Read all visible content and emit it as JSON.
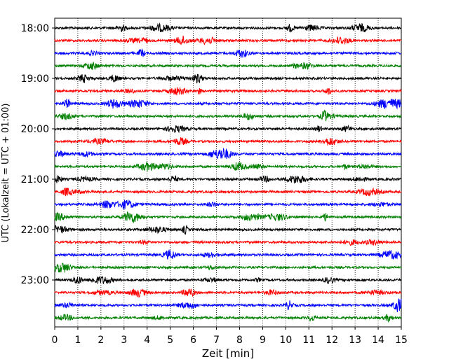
{
  "chart_data": {
    "type": "line",
    "title": "",
    "xlabel": "Zeit  [min]",
    "ylabel": "UTC (Lokalzeit = UTC + 01:00)",
    "xlim": [
      0,
      15
    ],
    "x_ticks": [
      "0",
      "1",
      "2",
      "3",
      "4",
      "5",
      "6",
      "7",
      "8",
      "9",
      "10",
      "11",
      "12",
      "13",
      "14",
      "15"
    ],
    "y_ticks": [
      "18:00",
      "19:00",
      "20:00",
      "21:00",
      "22:00",
      "23:00"
    ],
    "grid": "x-dotted",
    "trace_interval_minutes": 15,
    "start_time": "18:00",
    "trace_count": 24,
    "trace_colors": [
      "#000000",
      "#ff0000",
      "#0000ff",
      "#008000"
    ],
    "traces": [
      {
        "start": "18:00"
      },
      {
        "start": "18:15"
      },
      {
        "start": "18:30"
      },
      {
        "start": "18:45"
      },
      {
        "start": "19:00"
      },
      {
        "start": "19:15"
      },
      {
        "start": "19:30"
      },
      {
        "start": "19:45"
      },
      {
        "start": "20:00"
      },
      {
        "start": "20:15"
      },
      {
        "start": "20:30"
      },
      {
        "start": "20:45"
      },
      {
        "start": "21:00"
      },
      {
        "start": "21:15"
      },
      {
        "start": "21:30"
      },
      {
        "start": "21:45"
      },
      {
        "start": "22:00"
      },
      {
        "start": "22:15"
      },
      {
        "start": "22:30"
      },
      {
        "start": "22:45"
      },
      {
        "start": "23:00"
      },
      {
        "start": "23:15"
      },
      {
        "start": "23:30"
      },
      {
        "start": "23:45"
      }
    ]
  }
}
